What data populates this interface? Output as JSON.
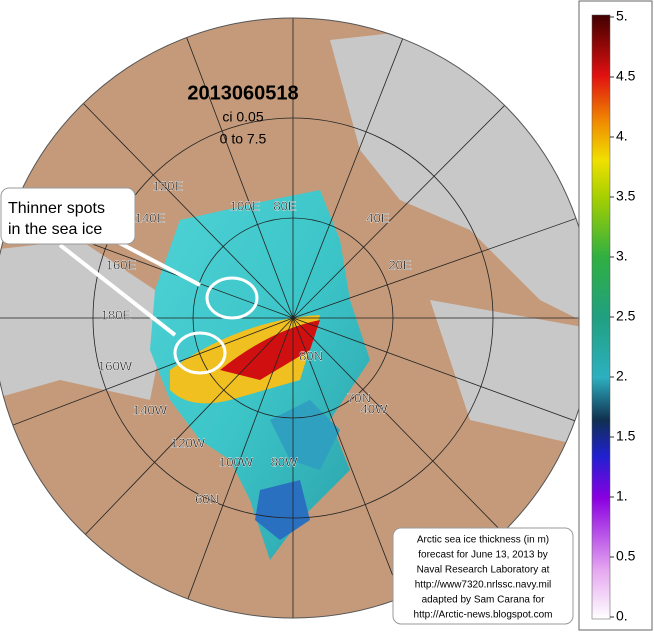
{
  "map": {
    "title": "2013060518",
    "subtitle": "ci 0.05",
    "range_text": "0 to 7.5",
    "labels": [
      "120E",
      "140E",
      "100E",
      "80E",
      "40E",
      "20E",
      "160E",
      "180E",
      "160W",
      "140W",
      "120W",
      "100W",
      "80W",
      "60N",
      "70N",
      "80N",
      "40W"
    ],
    "callout": [
      "Thinner spots",
      "in the sea ice"
    ],
    "credit": [
      "Arctic sea ice thickness (in m)",
      "forecast for June 13, 2013 by",
      "Naval Research Laboratory at",
      "http://www7320.nrlssc.navy.mil",
      "adapted by Sam Carana for",
      "http://Arctic-news.blogspot.com"
    ]
  },
  "colorbar": {
    "range": [
      0,
      5
    ],
    "ticks": [
      {
        "value": 5,
        "label": "5."
      },
      4.5,
      {
        "value": 4,
        "label": "4."
      },
      3.5,
      {
        "value": 3,
        "label": "3."
      },
      2.5,
      {
        "value": 2,
        "label": "2."
      },
      1.5,
      {
        "value": 1,
        "label": "1."
      },
      0.5,
      {
        "value": 0,
        "label": "0."
      }
    ]
  }
}
